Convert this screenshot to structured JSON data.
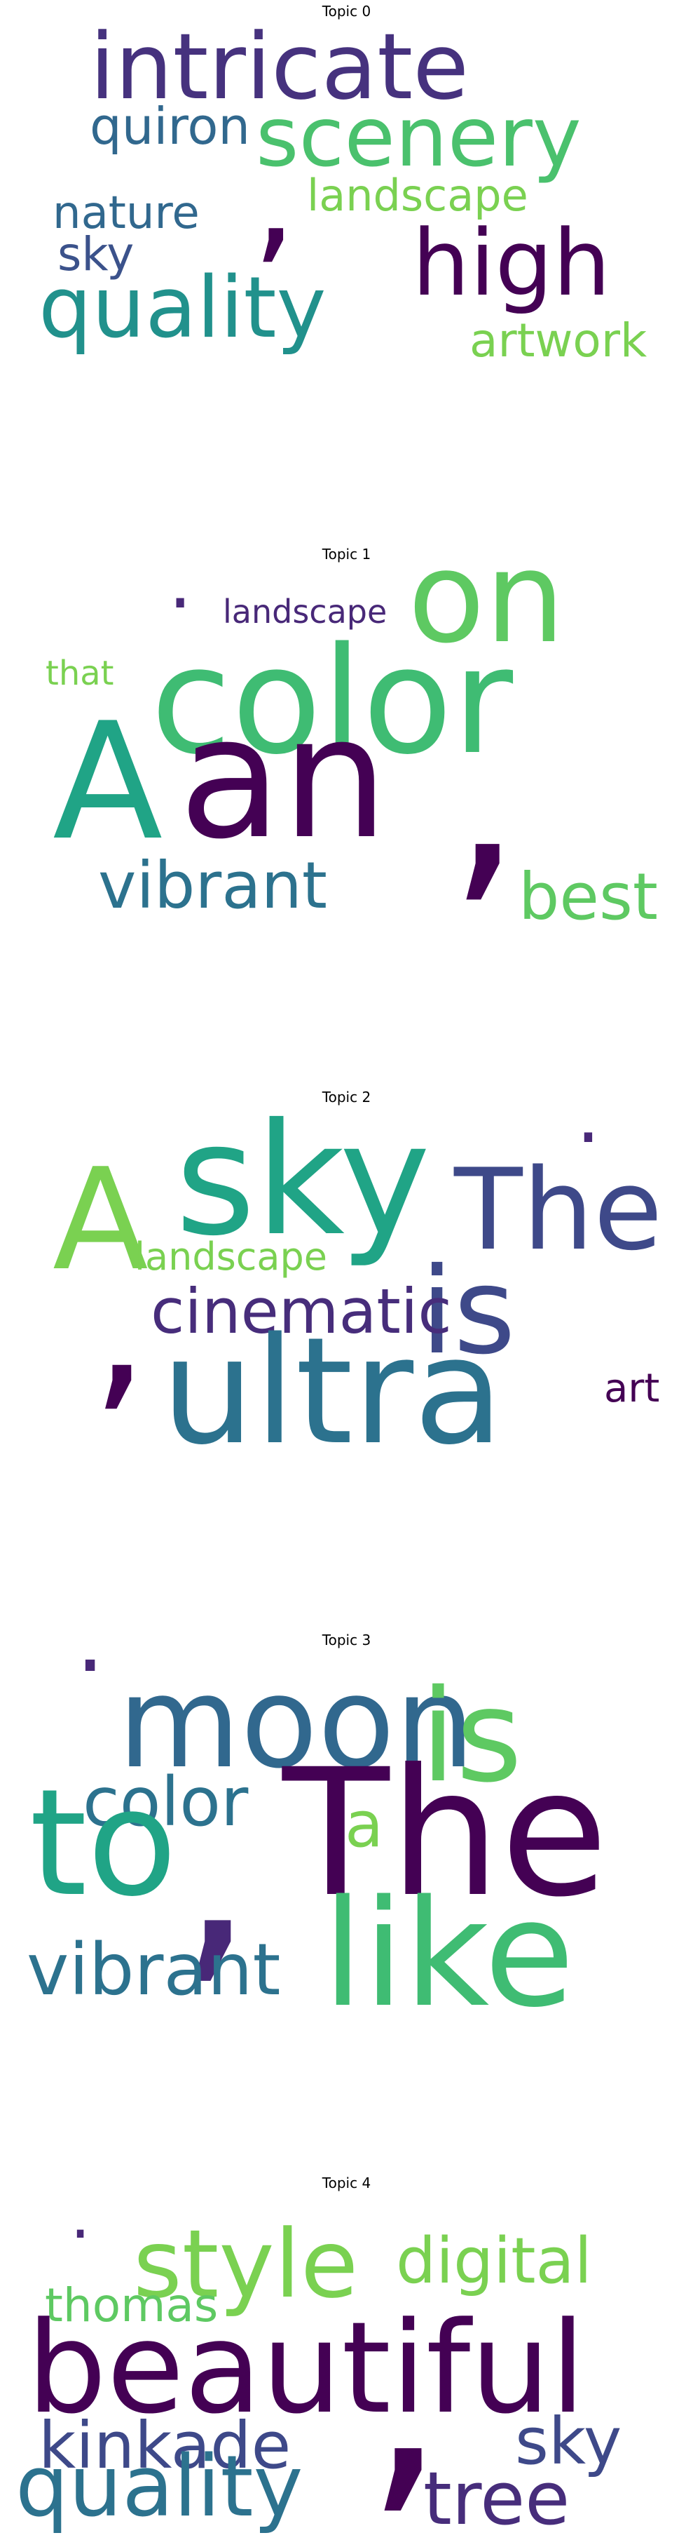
{
  "chart_data": [
    {
      "type": "wordcloud",
      "title": "Topic 0",
      "words": [
        {
          "text": "intricate",
          "color": "#46327e"
        },
        {
          "text": ",",
          "color": "#440154"
        },
        {
          "text": "scenery",
          "color": "#4ac16d"
        },
        {
          "text": "quiron",
          "color": "#31688e"
        },
        {
          "text": "landscape",
          "color": "#7ad151"
        },
        {
          "text": "nature",
          "color": "#31688e"
        },
        {
          "text": "high",
          "color": "#440154"
        },
        {
          "text": "sky",
          "color": "#3b528b"
        },
        {
          "text": "quality",
          "color": "#21918c"
        },
        {
          "text": "artwork",
          "color": "#7ad151"
        }
      ]
    },
    {
      "type": "wordcloud",
      "title": "Topic 1",
      "words": [
        {
          "text": ".",
          "color": "#482878"
        },
        {
          "text": "landscape",
          "color": "#482878"
        },
        {
          "text": "on",
          "color": "#5ec962"
        },
        {
          "text": "that",
          "color": "#7ad151"
        },
        {
          "text": "color",
          "color": "#3fbc73"
        },
        {
          "text": "A",
          "color": "#20a486"
        },
        {
          "text": "an",
          "color": "#440154"
        },
        {
          "text": ",",
          "color": "#440154"
        },
        {
          "text": "vibrant",
          "color": "#2c728e"
        },
        {
          "text": "best",
          "color": "#5ec962"
        }
      ]
    },
    {
      "type": "wordcloud",
      "title": "Topic 2",
      "words": [
        {
          "text": "sky",
          "color": "#20a486"
        },
        {
          "text": ".",
          "color": "#482878"
        },
        {
          "text": "The",
          "color": "#3e4989"
        },
        {
          "text": "A",
          "color": "#7ad151"
        },
        {
          "text": "landscape",
          "color": "#7ad151"
        },
        {
          "text": "is",
          "color": "#3e4989"
        },
        {
          "text": ",",
          "color": "#440154"
        },
        {
          "text": "cinematic",
          "color": "#472d7b"
        },
        {
          "text": "ultra",
          "color": "#2c728e"
        },
        {
          "text": "art",
          "color": "#440154"
        }
      ]
    },
    {
      "type": "wordcloud",
      "title": "Topic 3",
      "words": [
        {
          "text": ".",
          "color": "#482878"
        },
        {
          "text": "moon",
          "color": "#31688e"
        },
        {
          "text": "is",
          "color": "#5ec962"
        },
        {
          "text": "color",
          "color": "#2c728e"
        },
        {
          "text": "a",
          "color": "#7ad151"
        },
        {
          "text": "to",
          "color": "#20a486"
        },
        {
          "text": ",",
          "color": "#482878"
        },
        {
          "text": "The",
          "color": "#440154"
        },
        {
          "text": "vibrant",
          "color": "#2c728e"
        },
        {
          "text": "like",
          "color": "#3fbc73"
        }
      ]
    },
    {
      "type": "wordcloud",
      "title": "Topic 4",
      "words": [
        {
          "text": ".",
          "color": "#482878"
        },
        {
          "text": "style",
          "color": "#7ad151"
        },
        {
          "text": "digital",
          "color": "#7ad151"
        },
        {
          "text": "thomas",
          "color": "#5ec962"
        },
        {
          "text": "beautiful",
          "color": "#440154"
        },
        {
          "text": "kinkade",
          "color": "#3e4989"
        },
        {
          "text": ",",
          "color": "#440154"
        },
        {
          "text": "sky",
          "color": "#3e4989"
        },
        {
          "text": "quality",
          "color": "#2c728e"
        },
        {
          "text": "tree",
          "color": "#472d7b"
        }
      ]
    }
  ]
}
